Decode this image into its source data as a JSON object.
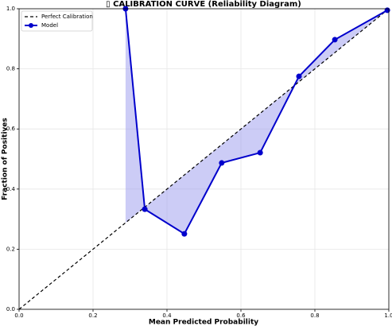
{
  "chart_data": {
    "type": "line",
    "title": "▯ CALIBRATION CURVE (Reliability Diagram)",
    "x_label": "Mean Predicted Probability",
    "y_label": "Fraction of Positives",
    "series": [
      {
        "name": "Perfect Calibration",
        "color": "#000000",
        "style": "dashed",
        "x": [
          0,
          1
        ],
        "values": [
          0,
          1
        ]
      },
      {
        "name": "Model",
        "color": "#0000cc",
        "style": "solid",
        "markers": true,
        "x": [
          0.288,
          0.34,
          0.447,
          0.548,
          0.652,
          0.757,
          0.854,
          0.996
        ],
        "values": [
          1.0,
          0.333,
          0.251,
          0.487,
          0.521,
          0.775,
          0.897,
          0.995
        ]
      }
    ],
    "fill_between": {
      "color": "#9999ee",
      "opacity": 0.5
    },
    "xlim": [
      0,
      1
    ],
    "ylim": [
      0,
      1
    ],
    "xticks": [
      {
        "value": 0,
        "label": "0.0"
      },
      {
        "value": 0.2,
        "label": "0.2"
      },
      {
        "value": 0.4,
        "label": "0.4"
      },
      {
        "value": 0.6,
        "label": "0.6"
      },
      {
        "value": 0.8,
        "label": "0.8"
      },
      {
        "value": 1,
        "label": "1.0"
      }
    ],
    "yticks": [
      {
        "value": 0,
        "label": "0.0"
      },
      {
        "value": 0.2,
        "label": "0.2"
      },
      {
        "value": 0.4,
        "label": "0.4"
      },
      {
        "value": 0.6,
        "label": "0.6"
      },
      {
        "value": 0.8,
        "label": "0.8"
      },
      {
        "value": 1,
        "label": "1.0"
      }
    ],
    "grid": true,
    "legend": "upper left"
  }
}
